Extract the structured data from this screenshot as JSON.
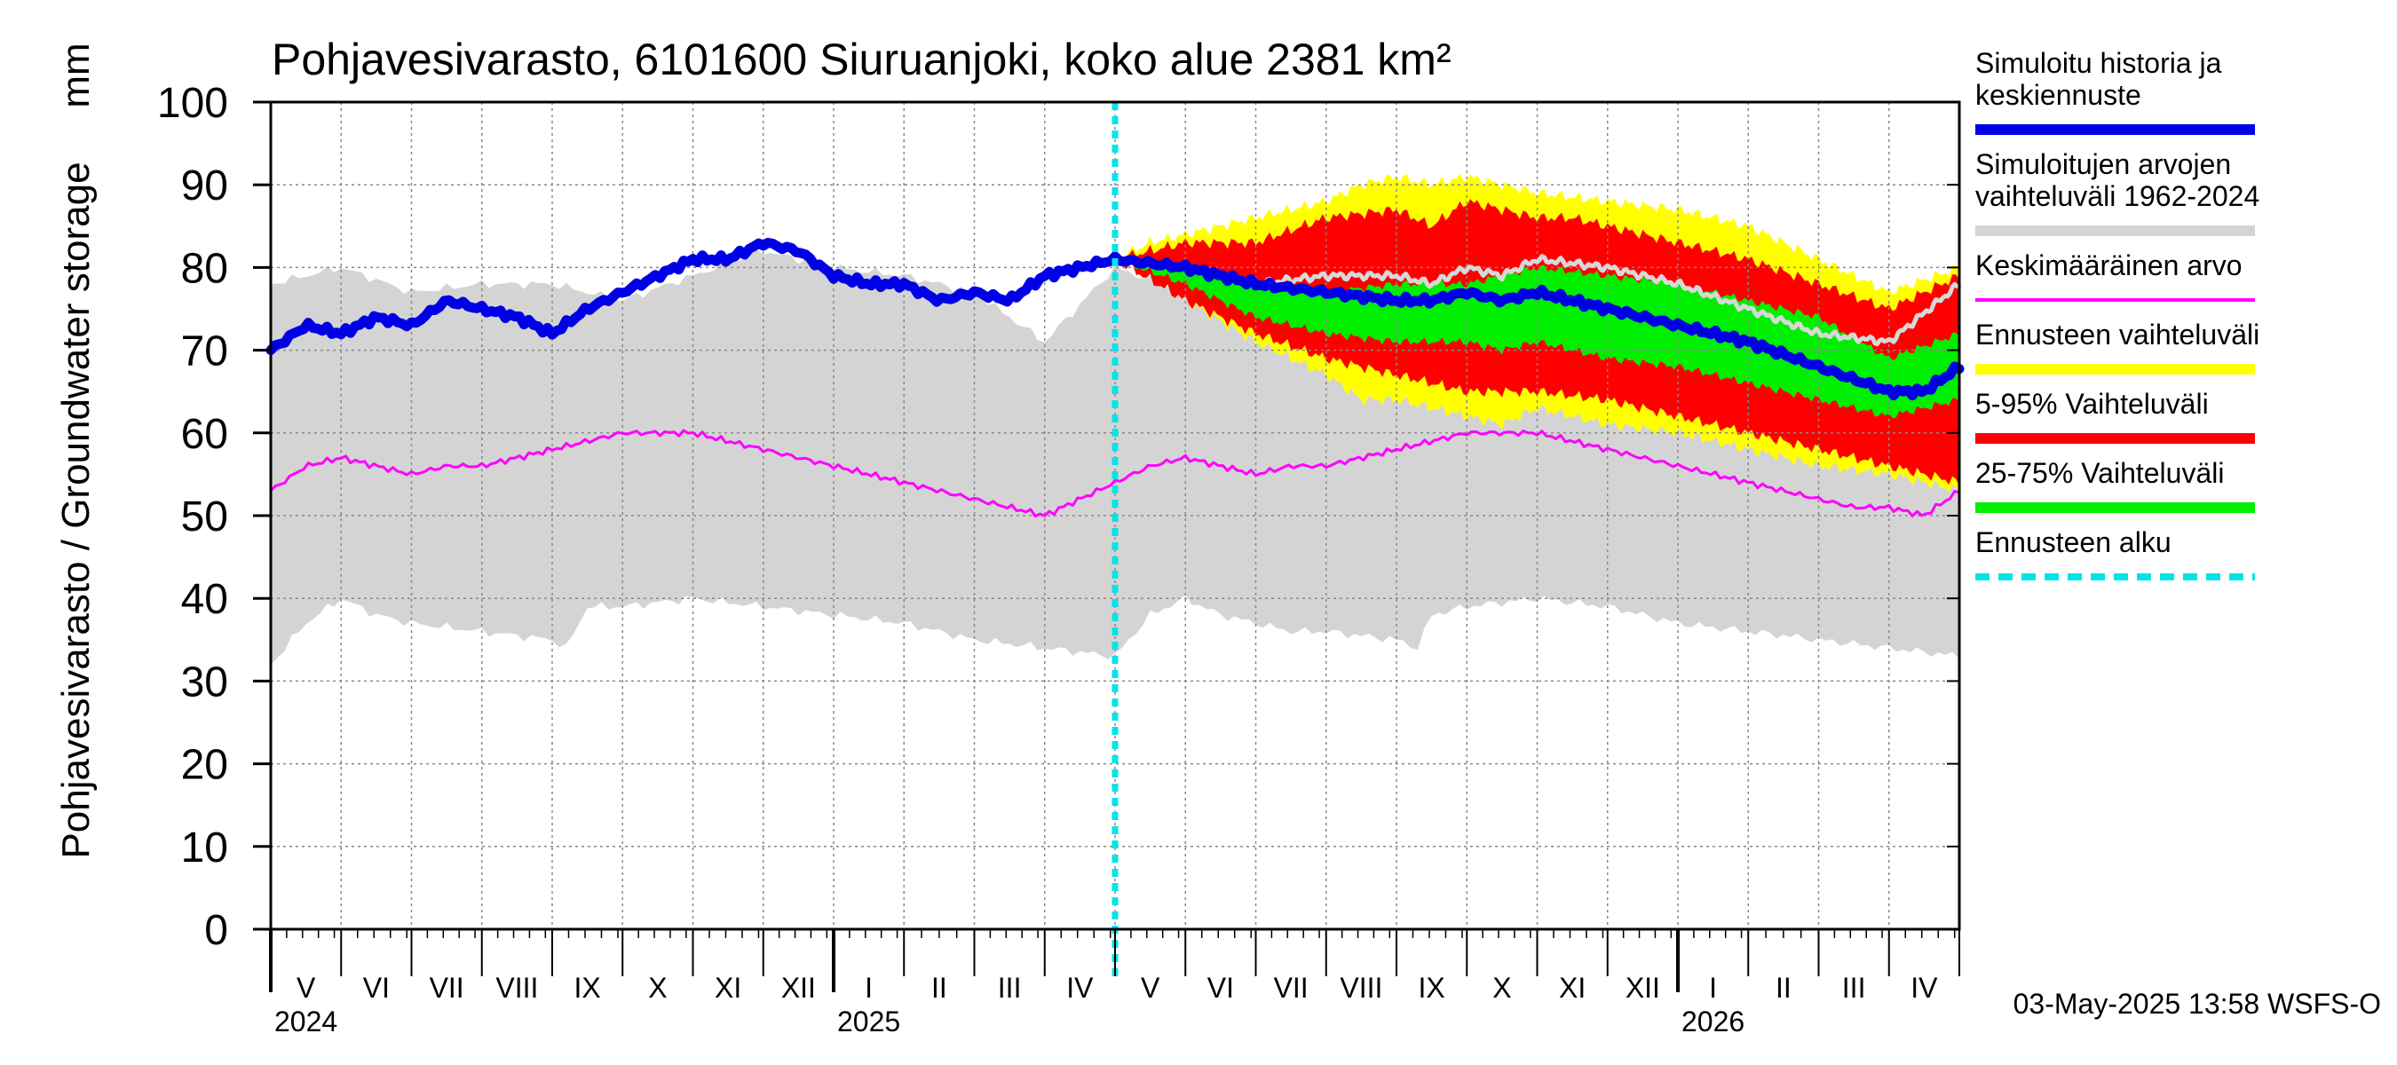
{
  "chart_data": {
    "type": "area",
    "title": "Pohjavesivarasto, 6101600 Siuruanjoki, koko alue 2381 km²",
    "ylabel": "Pohjavesivarasto / Groundwater storage",
    "yunit": "mm",
    "ylim": [
      0,
      100
    ],
    "yticks": [
      0,
      10,
      20,
      30,
      40,
      50,
      60,
      70,
      80,
      90,
      100
    ],
    "xlim_months": [
      0,
      24
    ],
    "forecast_start_month": 12.0,
    "month_labels": [
      "V",
      "VI",
      "VII",
      "VIII",
      "IX",
      "X",
      "XI",
      "XII",
      "I",
      "II",
      "III",
      "IV",
      "V",
      "VI",
      "VII",
      "VIII",
      "IX",
      "X",
      "XI",
      "XII",
      "I",
      "II",
      "III",
      "IV"
    ],
    "month_days": [
      31,
      30,
      31,
      31,
      30,
      31,
      30,
      31,
      31,
      28,
      31,
      30,
      31,
      30,
      31,
      31,
      30,
      31,
      30,
      31,
      31,
      28,
      31,
      30
    ],
    "year_labels": [
      {
        "label": "2024",
        "month": 0
      },
      {
        "label": "2025",
        "month": 8
      },
      {
        "label": "2026",
        "month": 20
      }
    ],
    "timestamp": "03-May-2025 13:58 WSFS-O",
    "colors": {
      "history": "#0000e6",
      "hist_range": "#d4d4d4",
      "mean": "#ff00ff",
      "ens_range": "#ffff00",
      "p5_95": "#ff0000",
      "p25_75": "#00ee00",
      "forecast_start": "#00e5e5",
      "prev_year": "#d8d8d8",
      "grid": "#888888"
    },
    "series": {
      "hist_range_upper": {
        "month": [
          0,
          0.5,
          1,
          2,
          3,
          4,
          5,
          6,
          7,
          8,
          9,
          10,
          11,
          12,
          13,
          14,
          15,
          16,
          17,
          18,
          19,
          20,
          21,
          22,
          23,
          24
        ],
        "value": [
          78,
          79,
          80,
          77,
          78,
          78,
          76,
          79,
          82,
          80,
          79,
          77,
          71,
          80,
          77,
          77,
          78,
          77,
          79,
          79,
          79,
          77,
          76,
          75,
          74,
          79
        ]
      },
      "hist_range_lower": {
        "month": [
          0,
          0.5,
          1,
          1.5,
          2,
          3,
          4,
          4.2,
          4.5,
          5,
          6,
          7,
          8,
          9,
          10,
          11,
          12,
          12.5,
          13,
          13.5,
          14,
          14.5,
          15,
          16,
          16.3,
          16.5,
          17,
          18,
          19,
          20,
          21,
          22,
          23,
          24
        ],
        "value": [
          32,
          37,
          40,
          38,
          37,
          36,
          35,
          34,
          39,
          39,
          40,
          39,
          38,
          37,
          35,
          34,
          33,
          38,
          40,
          38,
          37,
          36,
          36,
          35,
          34,
          38,
          39,
          40,
          39,
          37,
          36,
          35,
          34,
          33
        ]
      },
      "ens_upper": {
        "month": [
          12,
          12.5,
          13,
          14,
          15,
          15.5,
          16,
          16.5,
          17,
          17.5,
          18,
          19,
          20,
          21,
          22,
          23,
          24
        ],
        "value": [
          81,
          83,
          84,
          86,
          88,
          90,
          91,
          90,
          91,
          90,
          89,
          88,
          87,
          85,
          81,
          77,
          80
        ]
      },
      "ens_lower": {
        "month": [
          12,
          12.5,
          13,
          14,
          15,
          15.5,
          16,
          16.5,
          17,
          17.5,
          18,
          19,
          20,
          21,
          22,
          23,
          24
        ],
        "value": [
          81,
          79,
          76,
          71,
          67,
          64,
          64,
          63,
          62,
          61,
          63,
          61,
          60,
          58,
          56,
          55,
          53
        ]
      },
      "p5_95_upper": {
        "month": [
          12,
          13,
          14,
          15,
          16,
          16.5,
          17,
          17.5,
          18,
          18.5,
          19,
          20,
          21,
          22,
          23,
          24
        ],
        "value": [
          81,
          83,
          83,
          86,
          87,
          85,
          88,
          87,
          86,
          86,
          85,
          83,
          81,
          78,
          75,
          79
        ]
      },
      "p5_95_lower": {
        "month": [
          12,
          13,
          14,
          15,
          16,
          16.5,
          17,
          17.5,
          18,
          19,
          20,
          21,
          22,
          23,
          24
        ],
        "value": [
          81,
          76,
          72,
          69,
          67,
          66,
          65,
          65,
          65,
          64,
          62,
          60,
          58,
          56,
          54
        ]
      },
      "p25_75_upper": {
        "month": [
          12,
          13,
          14,
          15,
          16,
          17,
          17.5,
          18,
          19,
          20,
          21,
          22,
          23,
          24
        ],
        "value": [
          81,
          80,
          78,
          77,
          78,
          78,
          79,
          80,
          79,
          78,
          76,
          74,
          69,
          72
        ]
      },
      "p25_75_lower": {
        "month": [
          12,
          13,
          14,
          15,
          16,
          17,
          17.5,
          18,
          19,
          20,
          21,
          22,
          23,
          24
        ],
        "value": [
          81,
          78,
          74,
          72,
          71,
          71,
          70,
          71,
          69,
          68,
          66,
          64,
          62,
          64
        ]
      },
      "prev_year_line": {
        "month": [
          12,
          13,
          14,
          15,
          16,
          16.5,
          17,
          17.5,
          18,
          19,
          20,
          21,
          22,
          23,
          24
        ],
        "value": [
          81,
          80,
          78,
          79,
          79,
          78,
          80,
          79,
          81,
          80,
          78,
          75,
          72,
          71,
          78
        ]
      },
      "history_line": {
        "month": [
          0,
          0.5,
          1,
          1.5,
          2,
          2.5,
          3,
          3.5,
          4,
          4.5,
          5,
          5.5,
          6,
          6.5,
          7,
          7.5,
          8,
          8.5,
          9,
          9.5,
          10,
          10.5,
          11,
          11.5,
          12,
          13,
          14,
          15,
          16,
          16.5,
          17,
          17.5,
          18,
          19,
          20,
          21,
          22,
          23,
          23.5,
          24
        ],
        "value": [
          70,
          73,
          72,
          74,
          73,
          76,
          75,
          74,
          72,
          75,
          77,
          79,
          81,
          81,
          83,
          82,
          79,
          78,
          78,
          76,
          77,
          76,
          79,
          80,
          81,
          80,
          78,
          77,
          76,
          76,
          77,
          76,
          77,
          75,
          73,
          71,
          68,
          65,
          65,
          68
        ]
      },
      "mean_line": {
        "month": [
          0,
          0.5,
          1,
          1.5,
          2,
          2.5,
          3,
          3.5,
          4,
          4.5,
          5,
          5.5,
          6,
          6.5,
          7,
          7.5,
          8,
          8.5,
          9,
          9.5,
          10,
          10.5,
          11,
          11.5,
          12,
          12.5,
          13,
          13.5,
          14,
          14.5,
          15,
          15.5,
          16,
          16.5,
          17,
          17.5,
          18,
          18.5,
          19,
          19.5,
          20,
          20.5,
          21,
          21.5,
          22,
          22.5,
          23,
          23.5,
          24
        ],
        "value": [
          53,
          56,
          57,
          56,
          55,
          56,
          56,
          57,
          58,
          59,
          60,
          60,
          60,
          59,
          58,
          57,
          56,
          55,
          54,
          53,
          52,
          51,
          50,
          52,
          54,
          56,
          57,
          56,
          55,
          56,
          56,
          57,
          58,
          59,
          60,
          60,
          60,
          59,
          58,
          57,
          56,
          55,
          54,
          53,
          52,
          51,
          51,
          50,
          53
        ]
      }
    },
    "legend": [
      {
        "label": "Simuloitu historia ja keskiennuste",
        "color": "#0000e6",
        "style": "thick"
      },
      {
        "label": "Simuloitujen arvojen vaihteluväli 1962-2024",
        "color": "#d4d4d4",
        "style": "thick"
      },
      {
        "label": "Keskimääräinen arvo",
        "color": "#ff00ff",
        "style": "thin"
      },
      {
        "label": "Ennusteen vaihteluväli",
        "color": "#ffff00",
        "style": "thick"
      },
      {
        "label": "5-95% Vaihteluväli",
        "color": "#ff0000",
        "style": "thick"
      },
      {
        "label": "25-75% Vaihteluväli",
        "color": "#00ee00",
        "style": "thick"
      },
      {
        "label": "Ennusteen alku",
        "color": "#00e5e5",
        "style": "dashed"
      }
    ]
  }
}
